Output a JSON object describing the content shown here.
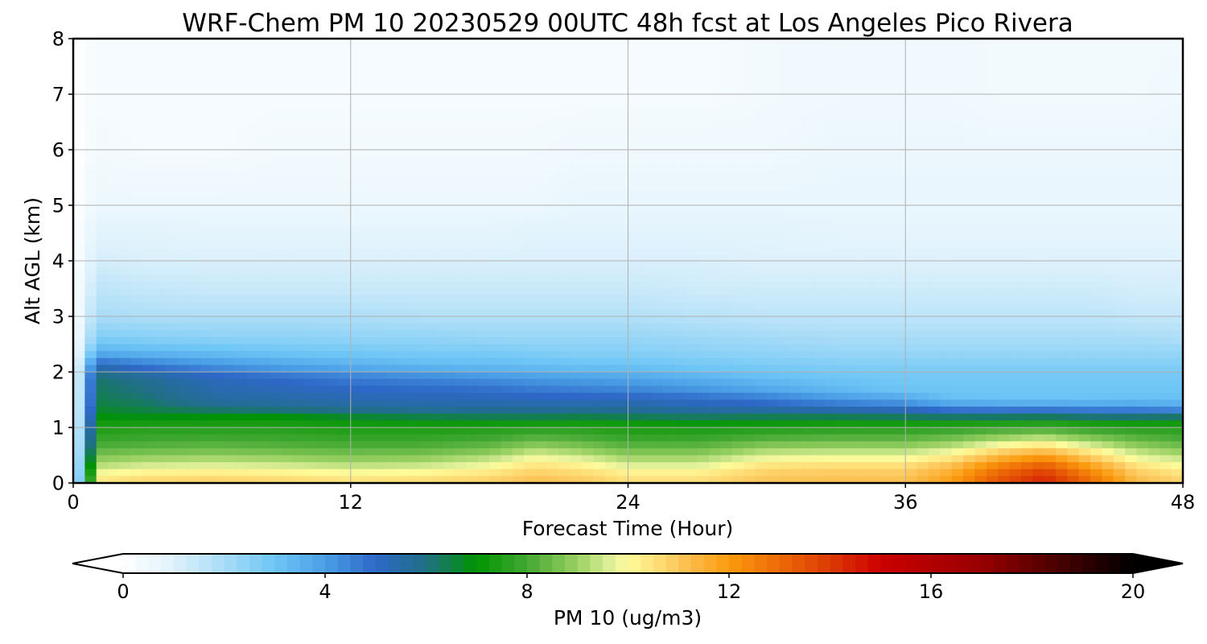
{
  "chart_data": {
    "type": "heatmap",
    "subtype": "filled-contour",
    "title": "WRF-Chem PM 10  20230529 00UTC 48h fcst at Los Angeles Pico Rivera",
    "xlabel": "Forecast Time (Hour)",
    "ylabel": "Alt AGL (km)",
    "xlim": [
      0,
      48
    ],
    "ylim": [
      0,
      8
    ],
    "xticks": [
      0,
      12,
      24,
      36,
      48
    ],
    "xtick_labels": [
      "0",
      "12",
      "24",
      "36",
      "48"
    ],
    "yticks": [
      0,
      1,
      2,
      3,
      4,
      5,
      6,
      7,
      8
    ],
    "ytick_labels": [
      "0",
      "1",
      "2",
      "3",
      "4",
      "5",
      "6",
      "7",
      "8"
    ],
    "grid": true,
    "hours": [
      0,
      1,
      3,
      6,
      9,
      12,
      15,
      18,
      20,
      22,
      24,
      27,
      30,
      33,
      36,
      38,
      40,
      42,
      44,
      46,
      48
    ],
    "altitudes_km": [
      0,
      0.15,
      0.3,
      0.45,
      0.6,
      0.75,
      0.9,
      1.05,
      1.2,
      1.35,
      1.5,
      1.7,
      1.9,
      2.1,
      2.35,
      2.6,
      3.0,
      3.5,
      4.0,
      4.5,
      5.0,
      6.0,
      7.0,
      8.0
    ],
    "pm10_ug_m3": [
      [
        0,
        10.5,
        10.8,
        10.9,
        10.8,
        10.6,
        10.7,
        10.9,
        11.2,
        11.0,
        10.6,
        10.6,
        11.1,
        11.2,
        11.2,
        12.0,
        13.5,
        14.5,
        13.0,
        11.3,
        10.8
      ],
      [
        0,
        10.0,
        10.3,
        10.4,
        10.3,
        10.1,
        10.2,
        10.5,
        10.9,
        10.7,
        10.3,
        10.3,
        10.9,
        11.0,
        11.0,
        11.7,
        13.2,
        14.1,
        12.6,
        11.0,
        10.5
      ],
      [
        0,
        9.3,
        9.6,
        9.7,
        9.6,
        9.4,
        9.5,
        9.9,
        10.5,
        10.2,
        9.7,
        9.7,
        10.5,
        10.6,
        10.6,
        11.2,
        12.5,
        13.3,
        11.9,
        10.5,
        10.0
      ],
      [
        0,
        8.8,
        9.0,
        9.1,
        9.0,
        8.8,
        8.9,
        9.3,
        9.9,
        9.6,
        9.1,
        9.1,
        9.8,
        9.9,
        9.9,
        10.4,
        11.5,
        12.2,
        11.0,
        9.8,
        9.4
      ],
      [
        0,
        8.3,
        8.4,
        8.5,
        8.4,
        8.3,
        8.3,
        8.6,
        9.2,
        8.9,
        8.5,
        8.5,
        9.1,
        9.2,
        9.2,
        9.6,
        10.5,
        11.0,
        10.1,
        9.2,
        8.8
      ],
      [
        0,
        7.9,
        8.0,
        8.1,
        8.0,
        7.9,
        7.9,
        8.1,
        8.5,
        8.3,
        8.0,
        8.0,
        8.4,
        8.5,
        8.5,
        8.8,
        9.4,
        9.8,
        9.1,
        8.5,
        8.2
      ],
      [
        0,
        7.6,
        7.7,
        7.7,
        7.7,
        7.6,
        7.6,
        7.7,
        7.9,
        7.8,
        7.6,
        7.6,
        7.8,
        7.9,
        7.9,
        8.1,
        8.4,
        8.6,
        8.2,
        7.9,
        7.8
      ],
      [
        0,
        7.3,
        7.4,
        7.4,
        7.4,
        7.3,
        7.3,
        7.3,
        7.4,
        7.4,
        7.3,
        7.2,
        7.3,
        7.4,
        7.4,
        7.5,
        7.6,
        7.7,
        7.5,
        7.4,
        7.4
      ],
      [
        0,
        6.9,
        6.8,
        6.9,
        6.9,
        6.6,
        6.4,
        6.3,
        6.3,
        6.4,
        6.3,
        6.2,
        6.3,
        6.3,
        6.2,
        6.1,
        6.1,
        6.2,
        6.0,
        6.0,
        6.1
      ],
      [
        0,
        6.6,
        6.4,
        6.0,
        5.8,
        5.7,
        5.6,
        5.6,
        5.6,
        5.6,
        5.6,
        5.4,
        5.3,
        5.1,
        4.9,
        4.4,
        4.3,
        4.3,
        4.2,
        4.2,
        3.9
      ],
      [
        0,
        6.4,
        6.2,
        5.6,
        5.5,
        5.4,
        5.3,
        5.3,
        5.2,
        5.2,
        5.2,
        5.0,
        4.7,
        4.2,
        3.8,
        3.2,
        3.1,
        3.1,
        3.1,
        3.2,
        3.2
      ],
      [
        0,
        6.3,
        6.0,
        5.4,
        5.2,
        5.0,
        4.9,
        4.8,
        4.6,
        4.5,
        4.4,
        4.1,
        3.7,
        3.3,
        3.0,
        3.0,
        3.0,
        3.0,
        3.0,
        3.0,
        3.0
      ],
      [
        0,
        6.2,
        5.8,
        5.2,
        4.9,
        4.6,
        4.4,
        4.2,
        4.0,
        3.9,
        3.8,
        3.5,
        3.2,
        3.0,
        2.9,
        2.9,
        2.9,
        2.9,
        2.9,
        2.9,
        2.9
      ],
      [
        0,
        5.3,
        4.8,
        4.3,
        3.9,
        3.6,
        3.4,
        3.3,
        3.2,
        3.1,
        3.1,
        2.9,
        2.8,
        2.7,
        2.7,
        2.7,
        2.7,
        2.7,
        2.7,
        2.7,
        2.7
      ],
      [
        0,
        3.6,
        3.4,
        3.2,
        3.0,
        2.9,
        2.8,
        2.8,
        2.7,
        2.6,
        2.6,
        2.5,
        2.4,
        2.3,
        2.3,
        2.3,
        2.3,
        2.3,
        2.3,
        2.3,
        2.3
      ],
      [
        0,
        2.7,
        2.6,
        2.5,
        2.5,
        2.4,
        2.4,
        2.3,
        2.3,
        2.3,
        2.3,
        2.2,
        2.1,
        2.0,
        2.0,
        2.0,
        2.0,
        2.0,
        2.0,
        2.0,
        1.9
      ],
      [
        0,
        2.0,
        1.9,
        1.9,
        1.9,
        1.9,
        1.8,
        1.8,
        1.8,
        1.8,
        1.8,
        1.7,
        1.6,
        1.6,
        1.6,
        1.6,
        1.6,
        1.6,
        1.6,
        1.5,
        1.5
      ],
      [
        0,
        1.6,
        1.5,
        1.4,
        1.4,
        1.4,
        1.4,
        1.4,
        1.4,
        1.4,
        1.4,
        1.3,
        1.3,
        1.3,
        1.3,
        1.3,
        1.3,
        1.3,
        1.3,
        1.2,
        1.2
      ],
      [
        0,
        1.2,
        1.1,
        1.1,
        1.1,
        1.1,
        1.1,
        1.1,
        1.1,
        1.1,
        1.1,
        1.1,
        1.0,
        1.0,
        1.0,
        1.0,
        1.0,
        1.0,
        1.0,
        1.0,
        1.0
      ],
      [
        0,
        0.9,
        0.9,
        0.8,
        0.8,
        0.8,
        0.8,
        0.8,
        0.9,
        0.9,
        0.9,
        0.9,
        0.9,
        0.8,
        0.8,
        0.8,
        0.8,
        0.8,
        0.8,
        0.8,
        0.8
      ],
      [
        0,
        0.6,
        0.6,
        0.6,
        0.6,
        0.6,
        0.6,
        0.6,
        0.6,
        0.7,
        0.7,
        0.7,
        0.7,
        0.7,
        0.7,
        0.7,
        0.7,
        0.7,
        0.7,
        0.7,
        0.7
      ],
      [
        0,
        0.4,
        0.3,
        0.3,
        0.4,
        0.4,
        0.4,
        0.4,
        0.4,
        0.5,
        0.5,
        0.5,
        0.5,
        0.6,
        0.6,
        0.6,
        0.6,
        0.6,
        0.6,
        0.6,
        0.6
      ],
      [
        0,
        0.3,
        0.3,
        0.3,
        0.3,
        0.3,
        0.3,
        0.3,
        0.3,
        0.3,
        0.3,
        0.3,
        0.4,
        0.5,
        0.5,
        0.5,
        0.4,
        0.4,
        0.4,
        0.4,
        0.5
      ],
      [
        0,
        0.3,
        0.3,
        0.3,
        0.3,
        0.3,
        0.3,
        0.3,
        0.3,
        0.3,
        0.3,
        0.3,
        0.4,
        0.5,
        0.5,
        0.5,
        0.4,
        0.4,
        0.4,
        0.4,
        0.4
      ]
    ],
    "colorbar": {
      "label": "PM 10  (ug/m3)",
      "min": 0,
      "max": 20,
      "ticks": [
        0,
        4,
        8,
        12,
        16,
        20
      ],
      "tick_labels": [
        "0",
        "4",
        "8",
        "12",
        "16",
        "20"
      ],
      "extend": "both",
      "orientation": "horizontal",
      "color_stops": [
        {
          "value": 0,
          "color": "#ffffff"
        },
        {
          "value": 1,
          "color": "#dff2fc"
        },
        {
          "value": 2,
          "color": "#a8dcf7"
        },
        {
          "value": 3,
          "color": "#6ec6f6"
        },
        {
          "value": 4,
          "color": "#4a9fe6"
        },
        {
          "value": 5,
          "color": "#2e68c8"
        },
        {
          "value": 6,
          "color": "#206f86"
        },
        {
          "value": 7,
          "color": "#009400"
        },
        {
          "value": 8,
          "color": "#43a833"
        },
        {
          "value": 9,
          "color": "#9ad163"
        },
        {
          "value": 9.7,
          "color": "#e4f29c"
        },
        {
          "value": 10,
          "color": "#fffb9a"
        },
        {
          "value": 11,
          "color": "#fdc75c"
        },
        {
          "value": 12,
          "color": "#fb9a0e"
        },
        {
          "value": 13,
          "color": "#ed6a06"
        },
        {
          "value": 14,
          "color": "#dc3a04"
        },
        {
          "value": 15,
          "color": "#cc0000"
        },
        {
          "value": 17,
          "color": "#980000"
        },
        {
          "value": 18,
          "color": "#640000"
        },
        {
          "value": 20,
          "color": "#000000"
        }
      ]
    }
  }
}
